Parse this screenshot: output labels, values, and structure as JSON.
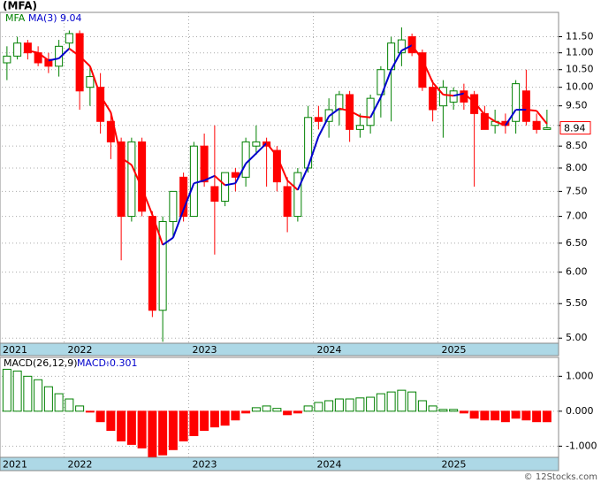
{
  "watermark": "© 12Stocks.com",
  "chart_data": [
    {
      "type": "candlestick",
      "title": "(MFA)",
      "name": "MFA",
      "categories": [
        "2021",
        null,
        null,
        null,
        null,
        null,
        "2022",
        null,
        null,
        null,
        null,
        null,
        null,
        null,
        null,
        null,
        null,
        null,
        "2023",
        null,
        null,
        null,
        null,
        null,
        null,
        null,
        null,
        null,
        null,
        null,
        "2024",
        null,
        null,
        null,
        null,
        null,
        null,
        null,
        null,
        null,
        null,
        null,
        "2025",
        null,
        null,
        null,
        null,
        null,
        null,
        null,
        null,
        null,
        null
      ],
      "open": [
        10.7,
        10.9,
        11.3,
        11.0,
        10.8,
        10.6,
        11.3,
        11.6,
        10.0,
        10.0,
        9.1,
        8.6,
        7.0,
        8.6,
        7.0,
        5.4,
        6.9,
        7.8,
        7.0,
        8.5,
        7.6,
        7.3,
        7.9,
        7.8,
        8.5,
        8.6,
        8.4,
        7.6,
        7.0,
        8.0,
        9.2,
        9.1,
        9.4,
        9.8,
        8.9,
        9.0,
        9.8,
        10.5,
        11.0,
        11.5,
        11.0,
        10.0,
        9.5,
        9.6,
        9.9,
        9.8,
        9.3,
        9.0,
        9.1,
        9.1,
        9.9,
        9.1,
        8.9
      ],
      "high": [
        11.2,
        11.5,
        11.4,
        11.2,
        11.0,
        11.4,
        11.7,
        11.7,
        10.6,
        10.4,
        9.3,
        8.7,
        8.7,
        8.7,
        7.1,
        7.0,
        7.5,
        7.9,
        8.6,
        8.8,
        9.0,
        7.9,
        8.0,
        8.7,
        9.0,
        8.7,
        8.5,
        7.8,
        8.0,
        9.5,
        9.5,
        9.7,
        9.9,
        9.9,
        9.3,
        9.8,
        10.6,
        11.5,
        11.8,
        11.6,
        11.1,
        10.2,
        10.2,
        10.0,
        10.1,
        9.9,
        9.5,
        9.4,
        9.3,
        10.2,
        10.5,
        9.3,
        9.4
      ],
      "low": [
        10.2,
        10.8,
        10.8,
        10.6,
        10.4,
        10.3,
        11.1,
        9.4,
        9.5,
        8.8,
        8.2,
        6.2,
        6.9,
        7.0,
        5.3,
        4.95,
        6.6,
        6.9,
        7.0,
        7.6,
        6.3,
        7.2,
        7.5,
        7.6,
        8.3,
        7.6,
        7.5,
        6.7,
        6.9,
        7.9,
        8.9,
        8.7,
        9.0,
        8.6,
        8.7,
        8.8,
        9.2,
        9.1,
        10.6,
        10.9,
        9.9,
        9.1,
        8.7,
        9.4,
        9.4,
        7.6,
        8.9,
        8.8,
        8.8,
        8.8,
        9.0,
        8.8,
        8.9
      ],
      "close": [
        10.9,
        11.3,
        11.0,
        10.7,
        10.6,
        11.2,
        11.6,
        9.9,
        10.3,
        9.1,
        8.6,
        7.0,
        8.6,
        7.1,
        5.4,
        6.9,
        7.5,
        7.0,
        8.5,
        7.7,
        7.3,
        7.9,
        7.8,
        8.6,
        8.6,
        8.5,
        7.7,
        7.0,
        7.9,
        9.2,
        9.1,
        9.4,
        9.8,
        8.9,
        9.0,
        9.7,
        10.5,
        11.3,
        11.4,
        11.0,
        10.0,
        9.4,
        10.0,
        9.9,
        9.6,
        9.3,
        8.9,
        9.1,
        9.0,
        10.1,
        9.1,
        8.9,
        8.94
      ],
      "up_color": "#008000",
      "down_color": "#ff0000",
      "overlay": {
        "name": "MA(3)",
        "up_color": "#0000cc",
        "down_color": "#ff0000",
        "values": [
          null,
          null,
          11.07,
          11.0,
          10.77,
          10.83,
          11.13,
          10.9,
          10.6,
          9.77,
          9.33,
          8.23,
          8.07,
          7.57,
          7.03,
          6.47,
          6.6,
          7.13,
          7.67,
          7.73,
          7.83,
          7.63,
          7.67,
          8.1,
          8.33,
          8.57,
          8.27,
          7.73,
          7.53,
          8.03,
          8.73,
          9.23,
          9.43,
          9.37,
          9.23,
          9.2,
          9.73,
          10.5,
          11.07,
          11.23,
          10.8,
          10.13,
          9.8,
          9.77,
          9.83,
          9.6,
          9.27,
          9.1,
          9.0,
          9.4,
          9.4,
          9.37,
          9.04
        ]
      },
      "log_y": true,
      "grid": true,
      "ylim": [
        4.93,
        12.3
      ],
      "yticks": [
        {
          "value": 5,
          "label": "5.00"
        },
        {
          "value": 5.5,
          "label": "5.50"
        },
        {
          "value": 6,
          "label": "6.00"
        },
        {
          "value": 6.5,
          "label": "6.50"
        },
        {
          "value": 7,
          "label": "7.00"
        },
        {
          "value": 7.5,
          "label": "7.50"
        },
        {
          "value": 8,
          "label": "8.00"
        },
        {
          "value": 8.5,
          "label": "8.50"
        },
        {
          "value": 9,
          "label": "9.00"
        },
        {
          "value": 9.5,
          "label": "9.50"
        },
        {
          "value": 10,
          "label": "10.00"
        },
        {
          "value": 10.5,
          "label": "10.50"
        },
        {
          "value": 11,
          "label": "11.00"
        },
        {
          "value": 11.5,
          "label": "11.50"
        }
      ]
    },
    {
      "type": "bar",
      "title": "MACD(26,12,9)",
      "categories": [
        "2021",
        null,
        null,
        null,
        null,
        null,
        "2022",
        null,
        null,
        null,
        null,
        null,
        null,
        null,
        null,
        null,
        null,
        null,
        "2023",
        null,
        null,
        null,
        null,
        null,
        null,
        null,
        null,
        null,
        null,
        null,
        "2024",
        null,
        null,
        null,
        null,
        null,
        null,
        null,
        null,
        null,
        null,
        null,
        "2025",
        null,
        null,
        null,
        null,
        null,
        null,
        null,
        null,
        null,
        null
      ],
      "series": [
        {
          "name": "MACD:",
          "color": "#0000cc",
          "values": [
            1.2,
            1.15,
            1.0,
            0.9,
            0.7,
            0.5,
            0.35,
            0.15,
            -0.02,
            -0.3,
            -0.55,
            -0.85,
            -0.95,
            -1.05,
            -1.3,
            -1.25,
            -1.1,
            -0.85,
            -0.7,
            -0.55,
            -0.45,
            -0.4,
            -0.25,
            -0.05,
            0.1,
            0.15,
            0.08,
            -0.1,
            -0.05,
            0.15,
            0.25,
            0.3,
            0.35,
            0.35,
            0.38,
            0.4,
            0.5,
            0.55,
            0.6,
            0.55,
            0.3,
            0.15,
            0.05,
            0.05,
            -0.05,
            -0.2,
            -0.25,
            -0.25,
            -0.3,
            -0.2,
            -0.25,
            -0.3,
            -0.301
          ]
        }
      ],
      "up_color": "#008000",
      "down_color": "#ff0000",
      "grid": true,
      "ylim": [
        -1.32,
        1.54
      ],
      "yticks": [
        {
          "value": 1,
          "label": "1.000"
        },
        {
          "value": 0,
          "label": "0.000"
        },
        {
          "value": -1,
          "label": "-1.000"
        }
      ]
    }
  ]
}
